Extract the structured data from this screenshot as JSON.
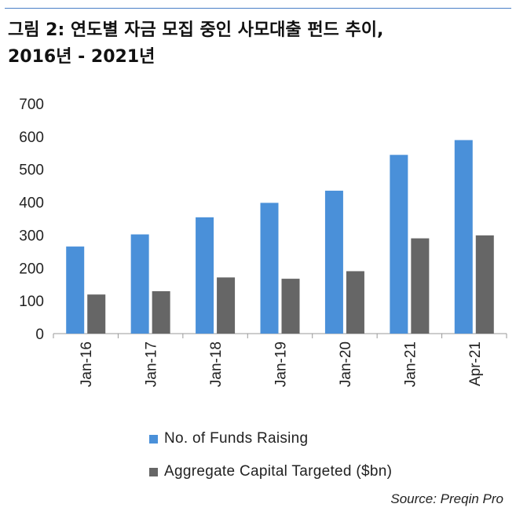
{
  "title_line1": "그림 2: 연도별 자금 모집 중인 사모대출 펀드 추이,",
  "title_line2": "2016년 - 2021년",
  "source": "Source: Preqin Pro",
  "colors": {
    "series1": "#4a90d9",
    "series2": "#666666",
    "rule": "#4a7fc7"
  },
  "chart_data": {
    "type": "bar",
    "categories": [
      "Jan-16",
      "Jan-17",
      "Jan-18",
      "Jan-19",
      "Jan-20",
      "Jan-21",
      "Apr-21"
    ],
    "series": [
      {
        "name": "No. of Funds Raising",
        "values": [
          265,
          302,
          354,
          398,
          435,
          544,
          589
        ]
      },
      {
        "name": "Aggregate Capital Targeted ($bn)",
        "values": [
          119,
          129,
          171,
          167,
          190,
          290,
          299
        ]
      }
    ],
    "ylim": [
      0,
      700
    ],
    "yticks": [
      0,
      100,
      200,
      300,
      400,
      500,
      600,
      700
    ],
    "grid": false,
    "legend_position": "bottom"
  }
}
